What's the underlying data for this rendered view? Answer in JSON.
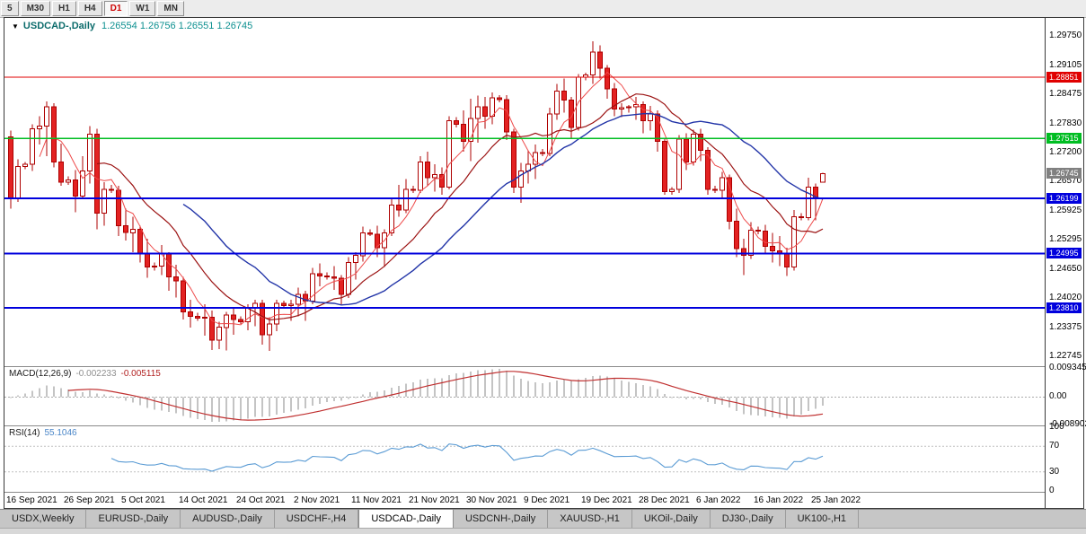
{
  "toolbar": {
    "timeframe_buttons": [
      {
        "label": "5",
        "active": false
      },
      {
        "label": "M30",
        "active": false
      },
      {
        "label": "H1",
        "active": false
      },
      {
        "label": "H4",
        "active": false
      },
      {
        "label": "D1",
        "active": true
      },
      {
        "label": "W1",
        "active": false
      },
      {
        "label": "MN",
        "active": false
      }
    ]
  },
  "header": {
    "dropdown_icon": "▼",
    "symbol_label": "USDCAD-,Daily",
    "ohlc": "1.26554 1.26756 1.26551 1.26745"
  },
  "indicators": {
    "macd": {
      "label": "MACD(12,26,9)",
      "value_main": "-0.002233",
      "value_signal": "-0.005115",
      "axis_labels": [
        "0.009345",
        "0.00",
        "-0.008902"
      ],
      "fast": 12,
      "slow": 26,
      "signal": 9,
      "histogram_color": "#c4c4c4",
      "signal_color": "#c03030"
    },
    "rsi": {
      "label": "RSI(14)",
      "value": "55.1046",
      "axis_labels": [
        "100",
        "70",
        "30",
        "0"
      ],
      "period": 14,
      "level_lines": [
        70,
        30
      ],
      "line_color": "#5a9bd4"
    }
  },
  "chart_data": {
    "type": "candlestick",
    "symbol": "USDCAD-",
    "timeframe": "Daily",
    "current_ohlc": {
      "open": "1.26554",
      "high": "1.26756",
      "low": "1.26551",
      "close": "1.26745"
    },
    "colors": {
      "bull_fill": "#ffffff",
      "bear_fill": "#e32222",
      "candle_stroke": "#ae0000"
    },
    "y_axis": {
      "min": 1.2255,
      "max": 1.2995,
      "labels": [
        "1.29750",
        "1.29105",
        "1.28475",
        "1.27830",
        "1.27200",
        "1.26570",
        "1.25925",
        "1.25295",
        "1.24650",
        "1.24020",
        "1.23375",
        "1.22745"
      ]
    },
    "levels": [
      {
        "text": "1.28851",
        "price": 1.28851,
        "color": "#e00000",
        "width": 1.4
      },
      {
        "text": "1.27515",
        "price": 1.27515,
        "color": "#00bd22",
        "width": 1.4
      },
      {
        "text": "1.26199",
        "price": 1.26199,
        "color": "#0000dd",
        "width": 2
      },
      {
        "text": "1.24995",
        "price": 1.24995,
        "color": "#0000dd",
        "width": 2
      },
      {
        "text": "1.23810",
        "price": 1.2381,
        "color": "#0000dd",
        "width": 2
      }
    ],
    "current_price": {
      "text": "1.26745",
      "price": 1.26745,
      "color": "#808080"
    },
    "moving_averages": [
      {
        "period": 5,
        "color": "#ee4a4a",
        "width": 1
      },
      {
        "period": 13,
        "color": "#9b1212",
        "width": 1.2
      },
      {
        "period": 25,
        "color": "#2335a8",
        "width": 1.4
      }
    ],
    "x_ticks": [
      {
        "bar": 0,
        "label": "16 Sep 2021"
      },
      {
        "bar": 8,
        "label": "26 Sep 2021"
      },
      {
        "bar": 16,
        "label": "5 Oct 2021"
      },
      {
        "bar": 24,
        "label": "14 Oct 2021"
      },
      {
        "bar": 32,
        "label": "24 Oct 2021"
      },
      {
        "bar": 40,
        "label": "2 Nov 2021"
      },
      {
        "bar": 48,
        "label": "11 Nov 2021"
      },
      {
        "bar": 56,
        "label": "21 Nov 2021"
      },
      {
        "bar": 64,
        "label": "30 Nov 2021"
      },
      {
        "bar": 72,
        "label": "9 Dec 2021"
      },
      {
        "bar": 80,
        "label": "19 Dec 2021"
      },
      {
        "bar": 88,
        "label": "28 Dec 2021"
      },
      {
        "bar": 96,
        "label": "6 Jan 2022"
      },
      {
        "bar": 104,
        "label": "16 Jan 2022"
      },
      {
        "bar": 112,
        "label": "25 Jan 2022"
      }
    ],
    "bars_ohlc": [
      [
        1.2755,
        1.2768,
        1.2598,
        1.262
      ],
      [
        1.262,
        1.2705,
        1.2612,
        1.269
      ],
      [
        1.269,
        1.27,
        1.2684,
        1.2695
      ],
      [
        1.2695,
        1.2782,
        1.268,
        1.2772
      ],
      [
        1.2772,
        1.28,
        1.2738,
        1.2778
      ],
      [
        1.2778,
        1.2832,
        1.2712,
        1.282
      ],
      [
        1.282,
        1.2828,
        1.2688,
        1.27
      ],
      [
        1.27,
        1.274,
        1.2648,
        1.2655
      ],
      [
        1.2655,
        1.2668,
        1.265,
        1.266
      ],
      [
        1.266,
        1.2682,
        1.259,
        1.2625
      ],
      [
        1.2625,
        1.2712,
        1.2618,
        1.268
      ],
      [
        1.268,
        1.2778,
        1.2652,
        1.276
      ],
      [
        1.276,
        1.2772,
        1.2552,
        1.2588
      ],
      [
        1.2588,
        1.2655,
        1.256,
        1.264
      ],
      [
        1.264,
        1.265,
        1.2632,
        1.2638
      ],
      [
        1.2638,
        1.2648,
        1.2538,
        1.256
      ],
      [
        1.256,
        1.2598,
        1.2528,
        1.2545
      ],
      [
        1.2545,
        1.258,
        1.2502,
        1.2552
      ],
      [
        1.2552,
        1.256,
        1.248,
        1.2498
      ],
      [
        1.2498,
        1.2532,
        1.2446,
        1.247
      ],
      [
        1.247,
        1.248,
        1.2462,
        1.2472
      ],
      [
        1.2472,
        1.2518,
        1.2452,
        1.2498
      ],
      [
        1.2498,
        1.2502,
        1.2418,
        1.2448
      ],
      [
        1.2448,
        1.2475,
        1.2403,
        1.244
      ],
      [
        1.244,
        1.2448,
        1.2355,
        1.2372
      ],
      [
        1.2372,
        1.2398,
        1.2337,
        1.2362
      ],
      [
        1.2362,
        1.237,
        1.2352,
        1.2358
      ],
      [
        1.2358,
        1.2388,
        1.232,
        1.236
      ],
      [
        1.236,
        1.2375,
        1.2288,
        1.231
      ],
      [
        1.231,
        1.235,
        1.229,
        1.2338
      ],
      [
        1.2338,
        1.2372,
        1.2287,
        1.2365
      ],
      [
        1.2365,
        1.238,
        1.2322,
        1.2355
      ],
      [
        1.2355,
        1.2362,
        1.2345,
        1.235
      ],
      [
        1.235,
        1.2388,
        1.2332,
        1.238
      ],
      [
        1.238,
        1.2398,
        1.234,
        1.239
      ],
      [
        1.239,
        1.2398,
        1.23,
        1.2322
      ],
      [
        1.2322,
        1.236,
        1.2286,
        1.2345
      ],
      [
        1.2345,
        1.2398,
        1.233,
        1.239
      ],
      [
        1.239,
        1.2396,
        1.238,
        1.2385
      ],
      [
        1.2385,
        1.2398,
        1.2352,
        1.2388
      ],
      [
        1.2388,
        1.2425,
        1.2362,
        1.241
      ],
      [
        1.241,
        1.2418,
        1.2352,
        1.2395
      ],
      [
        1.2395,
        1.2468,
        1.2388,
        1.2455
      ],
      [
        1.2455,
        1.2478,
        1.2428,
        1.245
      ],
      [
        1.245,
        1.2458,
        1.2442,
        1.2448
      ],
      [
        1.2448,
        1.2472,
        1.242,
        1.2445
      ],
      [
        1.2445,
        1.2452,
        1.2388,
        1.241
      ],
      [
        1.241,
        1.2492,
        1.2402,
        1.248
      ],
      [
        1.248,
        1.2502,
        1.2442,
        1.2495
      ],
      [
        1.2495,
        1.2558,
        1.2482,
        1.2545
      ],
      [
        1.2545,
        1.2552,
        1.2538,
        1.2542
      ],
      [
        1.2542,
        1.256,
        1.2492,
        1.2512
      ],
      [
        1.2512,
        1.2552,
        1.247,
        1.2545
      ],
      [
        1.2545,
        1.2618,
        1.2538,
        1.2605
      ],
      [
        1.2605,
        1.265,
        1.258,
        1.2595
      ],
      [
        1.2595,
        1.2662,
        1.2588,
        1.264
      ],
      [
        1.264,
        1.2648,
        1.2632,
        1.2638
      ],
      [
        1.2638,
        1.2712,
        1.2632,
        1.27
      ],
      [
        1.27,
        1.2722,
        1.2648,
        1.2665
      ],
      [
        1.2665,
        1.2695,
        1.2635,
        1.2672
      ],
      [
        1.2672,
        1.2688,
        1.2628,
        1.2645
      ],
      [
        1.2645,
        1.28,
        1.264,
        1.279
      ],
      [
        1.279,
        1.2798,
        1.2775,
        1.2782
      ],
      [
        1.2782,
        1.2812,
        1.2722,
        1.2745
      ],
      [
        1.2745,
        1.2838,
        1.2702,
        1.2795
      ],
      [
        1.2795,
        1.2845,
        1.2742,
        1.282
      ],
      [
        1.282,
        1.2842,
        1.2772,
        1.28
      ],
      [
        1.28,
        1.2852,
        1.2782,
        1.284
      ],
      [
        1.284,
        1.2846,
        1.283,
        1.2836
      ],
      [
        1.2836,
        1.2846,
        1.2748,
        1.2765
      ],
      [
        1.2765,
        1.2772,
        1.2632,
        1.2645
      ],
      [
        1.2645,
        1.2698,
        1.261,
        1.268
      ],
      [
        1.268,
        1.2725,
        1.2652,
        1.2695
      ],
      [
        1.2695,
        1.2738,
        1.2662,
        1.272
      ],
      [
        1.272,
        1.2728,
        1.2712,
        1.2718
      ],
      [
        1.2718,
        1.2818,
        1.2712,
        1.2805
      ],
      [
        1.2805,
        1.287,
        1.2792,
        1.2855
      ],
      [
        1.2855,
        1.2882,
        1.2808,
        1.2835
      ],
      [
        1.2835,
        1.2842,
        1.2752,
        1.2775
      ],
      [
        1.2775,
        1.2892,
        1.2768,
        1.2885
      ],
      [
        1.2885,
        1.2895,
        1.2878,
        1.289
      ],
      [
        1.289,
        1.2964,
        1.287,
        1.294
      ],
      [
        1.294,
        1.2955,
        1.2882,
        1.2905
      ],
      [
        1.2905,
        1.2912,
        1.2838,
        1.286
      ],
      [
        1.286,
        1.2872,
        1.28,
        1.2815
      ],
      [
        1.2815,
        1.2828,
        1.2798,
        1.2818
      ],
      [
        1.2818,
        1.2824,
        1.2808,
        1.282
      ],
      [
        1.282,
        1.2842,
        1.2792,
        1.2825
      ],
      [
        1.2825,
        1.2832,
        1.2762,
        1.279
      ],
      [
        1.279,
        1.2822,
        1.2768,
        1.2805
      ],
      [
        1.2805,
        1.2812,
        1.2722,
        1.2745
      ],
      [
        1.2745,
        1.2752,
        1.2628,
        1.2635
      ],
      [
        1.2635,
        1.2645,
        1.2628,
        1.264
      ],
      [
        1.264,
        1.2758,
        1.2632,
        1.275
      ],
      [
        1.275,
        1.2762,
        1.2682,
        1.27
      ],
      [
        1.27,
        1.277,
        1.2692,
        1.276
      ],
      [
        1.276,
        1.2772,
        1.2702,
        1.2725
      ],
      [
        1.2725,
        1.2732,
        1.2628,
        1.264
      ],
      [
        1.264,
        1.2648,
        1.2632,
        1.2638
      ],
      [
        1.2638,
        1.2678,
        1.2622,
        1.2665
      ],
      [
        1.2665,
        1.2672,
        1.2552,
        1.257
      ],
      [
        1.257,
        1.2598,
        1.2492,
        1.251
      ],
      [
        1.251,
        1.2532,
        1.2452,
        1.2495
      ],
      [
        1.2495,
        1.2568,
        1.2488,
        1.255
      ],
      [
        1.255,
        1.2558,
        1.2542,
        1.2548
      ],
      [
        1.2548,
        1.2562,
        1.2498,
        1.2515
      ],
      [
        1.2515,
        1.2545,
        1.248,
        1.2505
      ],
      [
        1.2505,
        1.2538,
        1.2472,
        1.25
      ],
      [
        1.25,
        1.2512,
        1.245,
        1.247
      ],
      [
        1.247,
        1.2595,
        1.2462,
        1.258
      ],
      [
        1.258,
        1.2588,
        1.2572,
        1.2578
      ],
      [
        1.2578,
        1.2665,
        1.2572,
        1.2645
      ],
      [
        1.2645,
        1.2652,
        1.2572,
        1.262
      ],
      [
        1.26554,
        1.26756,
        1.26551,
        1.26745
      ]
    ]
  },
  "tabs": [
    {
      "label": "USDX,Weekly",
      "active": false
    },
    {
      "label": "EURUSD-,Daily",
      "active": false
    },
    {
      "label": "AUDUSD-,Daily",
      "active": false
    },
    {
      "label": "USDCHF-,H4",
      "active": false
    },
    {
      "label": "USDCAD-,Daily",
      "active": true
    },
    {
      "label": "USDCNH-,Daily",
      "active": false
    },
    {
      "label": "XAUUSD-,H1",
      "active": false
    },
    {
      "label": "UKOil-,Daily",
      "active": false
    },
    {
      "label": "DJ30-,Daily",
      "active": false
    },
    {
      "label": "UK100-,H1",
      "active": false
    }
  ]
}
